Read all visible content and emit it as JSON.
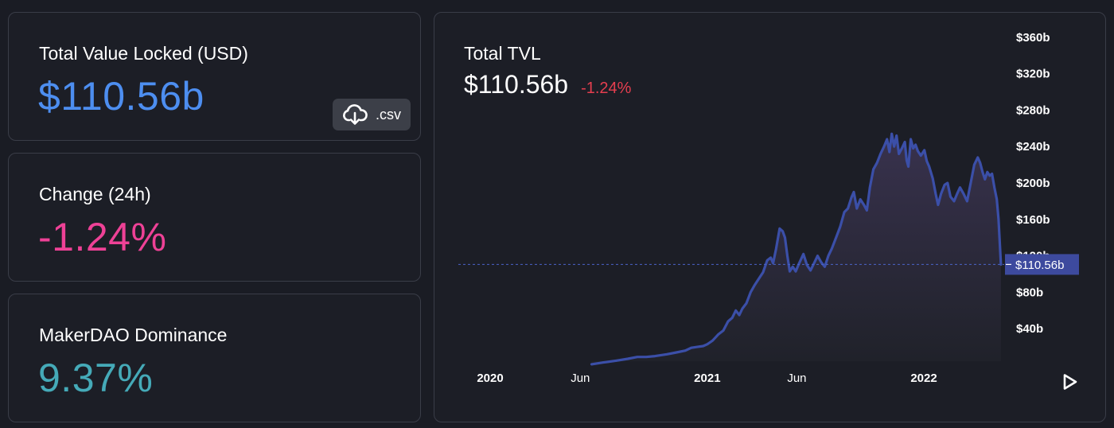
{
  "stats": {
    "tvl": {
      "label": "Total Value Locked (USD)",
      "value": "$110.56b",
      "color": "#4d8ef0"
    },
    "change": {
      "label": "Change (24h)",
      "value": "-1.24%",
      "color": "#ee4196"
    },
    "dominance": {
      "label": "MakerDAO Dominance",
      "value": "9.37%",
      "color": "#45aab8"
    }
  },
  "csv_button": {
    "label": ".csv",
    "icon": "cloud-download-icon"
  },
  "chart": {
    "title": "Total TVL",
    "headline_value": "$110.56b",
    "headline_change": "-1.24%",
    "current_label": "$110.56b",
    "play_icon": "play-icon"
  },
  "chart_data": {
    "type": "area",
    "title": "Total TVL",
    "xlabel": "",
    "ylabel": "",
    "y_unit": "billion USD",
    "ylim": [
      0,
      360
    ],
    "y_ticks": [
      40,
      80,
      120,
      160,
      200,
      240,
      280,
      320,
      360
    ],
    "y_tick_labels": [
      "$40b",
      "$80b",
      "$120b",
      "$160b",
      "$200b",
      "$240b",
      "$280b",
      "$320b",
      "$360b"
    ],
    "x_ticks": [
      {
        "label": "2020",
        "date": "2020-01-01",
        "bold": true
      },
      {
        "label": "Jun",
        "date": "2020-06-01",
        "bold": false
      },
      {
        "label": "2021",
        "date": "2021-01-01",
        "bold": true
      },
      {
        "label": "Jun",
        "date": "2021-06-01",
        "bold": false
      },
      {
        "label": "2022",
        "date": "2022-01-01",
        "bold": true
      }
    ],
    "xlim": [
      "2019-11-01",
      "2022-05-12"
    ],
    "current_value": 110.56,
    "colors": {
      "line": "#3b4fa8",
      "fill_top": "#3a3350",
      "fill_bottom": "#20222a",
      "marker": "#3d4a9e"
    },
    "series": [
      {
        "points": [
          [
            "2020-06-20",
            1
          ],
          [
            "2020-07-10",
            3
          ],
          [
            "2020-08-01",
            5
          ],
          [
            "2020-08-20",
            7
          ],
          [
            "2020-09-05",
            9
          ],
          [
            "2020-09-20",
            9
          ],
          [
            "2020-10-05",
            10
          ],
          [
            "2020-10-25",
            12
          ],
          [
            "2020-11-10",
            14
          ],
          [
            "2020-11-25",
            16
          ],
          [
            "2020-12-05",
            19
          ],
          [
            "2020-12-15",
            20
          ],
          [
            "2020-12-25",
            21
          ],
          [
            "2021-01-01",
            23
          ],
          [
            "2021-01-10",
            27
          ],
          [
            "2021-01-20",
            34
          ],
          [
            "2021-01-28",
            38
          ],
          [
            "2021-02-05",
            48
          ],
          [
            "2021-02-12",
            52
          ],
          [
            "2021-02-18",
            60
          ],
          [
            "2021-02-24",
            55
          ],
          [
            "2021-03-01",
            62
          ],
          [
            "2021-03-08",
            68
          ],
          [
            "2021-03-15",
            80
          ],
          [
            "2021-03-22",
            88
          ],
          [
            "2021-03-29",
            95
          ],
          [
            "2021-04-05",
            102
          ],
          [
            "2021-04-12",
            115
          ],
          [
            "2021-04-18",
            118
          ],
          [
            "2021-04-22",
            112
          ],
          [
            "2021-04-27",
            128
          ],
          [
            "2021-05-03",
            150
          ],
          [
            "2021-05-08",
            147
          ],
          [
            "2021-05-12",
            140
          ],
          [
            "2021-05-16",
            120
          ],
          [
            "2021-05-20",
            103
          ],
          [
            "2021-05-25",
            108
          ],
          [
            "2021-05-30",
            103
          ],
          [
            "2021-06-05",
            112
          ],
          [
            "2021-06-12",
            122
          ],
          [
            "2021-06-18",
            110
          ],
          [
            "2021-06-24",
            104
          ],
          [
            "2021-06-30",
            112
          ],
          [
            "2021-07-06",
            120
          ],
          [
            "2021-07-12",
            113
          ],
          [
            "2021-07-18",
            108
          ],
          [
            "2021-07-24",
            120
          ],
          [
            "2021-07-30",
            128
          ],
          [
            "2021-08-06",
            140
          ],
          [
            "2021-08-13",
            152
          ],
          [
            "2021-08-20",
            168
          ],
          [
            "2021-08-26",
            172
          ],
          [
            "2021-09-01",
            184
          ],
          [
            "2021-09-05",
            190
          ],
          [
            "2021-09-10",
            172
          ],
          [
            "2021-09-16",
            182
          ],
          [
            "2021-09-22",
            176
          ],
          [
            "2021-09-27",
            170
          ],
          [
            "2021-10-02",
            195
          ],
          [
            "2021-10-08",
            215
          ],
          [
            "2021-10-14",
            222
          ],
          [
            "2021-10-20",
            232
          ],
          [
            "2021-10-26",
            240
          ],
          [
            "2021-10-31",
            248
          ],
          [
            "2021-11-04",
            234
          ],
          [
            "2021-11-08",
            254
          ],
          [
            "2021-11-12",
            240
          ],
          [
            "2021-11-16",
            252
          ],
          [
            "2021-11-20",
            232
          ],
          [
            "2021-11-25",
            238
          ],
          [
            "2021-11-30",
            245
          ],
          [
            "2021-12-03",
            225
          ],
          [
            "2021-12-06",
            218
          ],
          [
            "2021-12-10",
            248
          ],
          [
            "2021-12-14",
            238
          ],
          [
            "2021-12-18",
            242
          ],
          [
            "2021-12-22",
            235
          ],
          [
            "2021-12-27",
            230
          ],
          [
            "2022-01-02",
            236
          ],
          [
            "2022-01-06",
            224
          ],
          [
            "2022-01-10",
            218
          ],
          [
            "2022-01-16",
            205
          ],
          [
            "2022-01-21",
            188
          ],
          [
            "2022-01-25",
            176
          ],
          [
            "2022-01-30",
            188
          ],
          [
            "2022-02-05",
            198
          ],
          [
            "2022-02-10",
            200
          ],
          [
            "2022-02-15",
            185
          ],
          [
            "2022-02-21",
            180
          ],
          [
            "2022-02-26",
            188
          ],
          [
            "2022-03-03",
            195
          ],
          [
            "2022-03-09",
            188
          ],
          [
            "2022-03-15",
            180
          ],
          [
            "2022-03-21",
            200
          ],
          [
            "2022-03-27",
            220
          ],
          [
            "2022-04-02",
            228
          ],
          [
            "2022-04-06",
            222
          ],
          [
            "2022-04-10",
            212
          ],
          [
            "2022-04-14",
            204
          ],
          [
            "2022-04-18",
            212
          ],
          [
            "2022-04-22",
            208
          ],
          [
            "2022-04-26",
            210
          ],
          [
            "2022-04-30",
            195
          ],
          [
            "2022-05-04",
            182
          ],
          [
            "2022-05-07",
            160
          ],
          [
            "2022-05-09",
            135
          ],
          [
            "2022-05-11",
            110.56
          ]
        ]
      }
    ]
  }
}
